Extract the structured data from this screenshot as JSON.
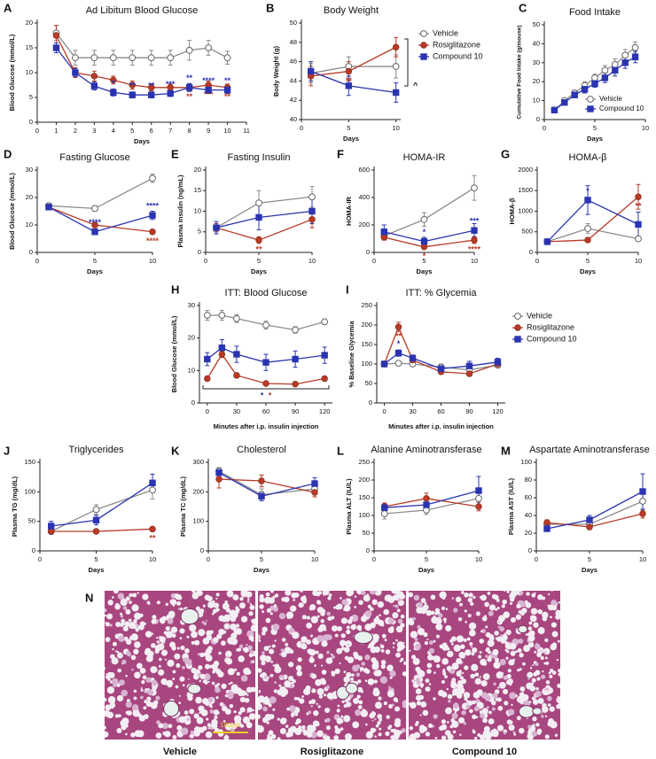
{
  "chart_data": [
    {
      "type": "line",
      "panel": "A",
      "title": "Ad Libitum Blood Glucose",
      "x_label": "Days",
      "y_label": "Blood Glucose (mmol/L)",
      "x": [
        1,
        2,
        3,
        4,
        5,
        6,
        7,
        8,
        9,
        10
      ],
      "xlim": [
        0,
        11
      ],
      "xticks": [
        0,
        1,
        2,
        3,
        4,
        5,
        6,
        7,
        8,
        9,
        10,
        11
      ],
      "ylim": [
        0,
        20
      ],
      "yticks": [
        0,
        5,
        10,
        15,
        20
      ],
      "series": [
        {
          "color": "#8c8c8c",
          "marker": "circle-open",
          "values": [
            18,
            13,
            13,
            13,
            13,
            13,
            13,
            14.5,
            15,
            13
          ],
          "errors": [
            1.5,
            1.5,
            1.5,
            1.5,
            1.5,
            1.5,
            1.5,
            2,
            1.5,
            1.3
          ]
        },
        {
          "color": "#b83a26",
          "marker": "circle",
          "values": [
            17.5,
            10,
            9.3,
            8.5,
            7.5,
            7,
            7,
            7,
            7.5,
            7
          ],
          "errors": [
            2,
            1,
            1,
            0.8,
            0.8,
            0.7,
            0.7,
            0.7,
            0.8,
            0.7
          ],
          "significance": [
            null,
            null,
            null,
            null,
            null,
            "**",
            "**",
            "**",
            "***",
            "**"
          ]
        },
        {
          "color": "#2b34b0",
          "marker": "square",
          "values": [
            15,
            10,
            7.3,
            6,
            5.5,
            5.5,
            5.8,
            7,
            6.5,
            6.5
          ],
          "errors": [
            1,
            0.8,
            0.8,
            0.7,
            0.6,
            0.6,
            0.6,
            0.8,
            0.7,
            0.7
          ],
          "significance": [
            null,
            null,
            null,
            "*",
            "**",
            "**",
            "***",
            "**",
            "****",
            "**"
          ]
        }
      ]
    },
    {
      "type": "line",
      "panel": "B",
      "title": "Body Weight",
      "x_label": "Days",
      "y_label": "Body Weight (g)",
      "x": [
        1,
        5,
        10
      ],
      "xlim": [
        0,
        10.5
      ],
      "xticks": [
        0,
        5,
        10
      ],
      "ylim": [
        40,
        50
      ],
      "yticks": [
        40,
        42,
        44,
        46,
        48,
        50
      ],
      "legend": "right",
      "bracket_label": "^",
      "series": [
        {
          "name": "Vehicle",
          "color": "#8c8c8c",
          "marker": "circle-open",
          "values": [
            44.8,
            45.5,
            45.5
          ],
          "errors": [
            1,
            1,
            1.2
          ]
        },
        {
          "name": "Rosiglitazone",
          "color": "#b83a26",
          "marker": "circle",
          "values": [
            44.5,
            45,
            47.5
          ],
          "errors": [
            1,
            1,
            1
          ],
          "significance": [
            null,
            "**",
            null
          ]
        },
        {
          "name": "Compound 10",
          "color": "#2b34b0",
          "marker": "square",
          "values": [
            45,
            43.5,
            42.8
          ],
          "errors": [
            1,
            1,
            1
          ]
        }
      ]
    },
    {
      "type": "line",
      "panel": "C",
      "title": "Food Intake",
      "x_label": "Days",
      "y_label": "Cumulative Food Intake (g/mouse)",
      "x": [
        1,
        2,
        3,
        4,
        5,
        6,
        7,
        8,
        9
      ],
      "xlim": [
        0,
        10
      ],
      "xticks": [
        0,
        5,
        10
      ],
      "ylim": [
        0,
        50
      ],
      "yticks": [
        0,
        10,
        20,
        30,
        40,
        50
      ],
      "legend": "lower right",
      "series": [
        {
          "name": "Vehicle",
          "color": "#8c8c8c",
          "marker": "circle-open",
          "values": [
            5,
            10,
            14,
            18,
            22,
            26,
            29,
            34,
            38
          ],
          "errors": [
            1,
            1,
            1.5,
            2,
            2,
            2.5,
            3,
            3,
            3
          ]
        },
        {
          "name": "Compound 10",
          "color": "#2b34b0",
          "marker": "square",
          "values": [
            5,
            9,
            13,
            16,
            19,
            22,
            26,
            30,
            33
          ],
          "errors": [
            1,
            1,
            1.5,
            2,
            2,
            2.5,
            3,
            3,
            3
          ]
        }
      ]
    },
    {
      "type": "line",
      "panel": "D",
      "title": "Fasting Glucose",
      "x_label": "Days",
      "y_label": "Blood Glucose (mmol/L)",
      "x": [
        1,
        5,
        10
      ],
      "xlim": [
        0,
        10
      ],
      "xticks": [
        0,
        5,
        10
      ],
      "ylim": [
        0,
        30
      ],
      "yticks": [
        0,
        10,
        20,
        30
      ],
      "series": [
        {
          "color": "#8c8c8c",
          "marker": "circle-open",
          "values": [
            17,
            16,
            27
          ],
          "errors": [
            1,
            1,
            1.5
          ]
        },
        {
          "color": "#b83a26",
          "marker": "circle",
          "values": [
            16.5,
            10,
            7.5
          ],
          "errors": [
            1,
            1,
            0.8
          ],
          "significance": [
            null,
            "**",
            "****"
          ]
        },
        {
          "color": "#2b34b0",
          "marker": "square",
          "values": [
            16.5,
            7.5,
            13.5
          ],
          "errors": [
            1,
            0.8,
            1.5
          ],
          "significance": [
            null,
            "****",
            "****"
          ]
        }
      ]
    },
    {
      "type": "line",
      "panel": "E",
      "title": "Fasting Insulin",
      "x_label": "Days",
      "y_label": "Plasma Insulin (ng/mL)",
      "x": [
        1,
        5,
        10
      ],
      "xlim": [
        0,
        10
      ],
      "xticks": [
        0,
        5,
        10
      ],
      "ylim": [
        0,
        20
      ],
      "yticks": [
        0,
        5,
        10,
        15,
        20
      ],
      "series": [
        {
          "color": "#8c8c8c",
          "marker": "circle-open",
          "values": [
            6,
            12,
            13.5
          ],
          "errors": [
            1,
            3,
            2.5
          ]
        },
        {
          "color": "#b83a26",
          "marker": "circle",
          "values": [
            6,
            3,
            8
          ],
          "errors": [
            1,
            0.8,
            2
          ],
          "significance": [
            null,
            "**",
            null
          ]
        },
        {
          "color": "#2b34b0",
          "marker": "square",
          "values": [
            6,
            8.5,
            10
          ],
          "errors": [
            1.5,
            3,
            3
          ]
        }
      ]
    },
    {
      "type": "line",
      "panel": "F",
      "title": "HOMA-IR",
      "x_label": "Days",
      "y_label": "HOMA-IR",
      "x": [
        1,
        5,
        10
      ],
      "xlim": [
        0,
        10
      ],
      "xticks": [
        0,
        5,
        10
      ],
      "ylim": [
        0,
        600
      ],
      "yticks": [
        0,
        200,
        400,
        600
      ],
      "series": [
        {
          "color": "#8c8c8c",
          "marker": "circle-open",
          "values": [
            120,
            240,
            470
          ],
          "errors": [
            30,
            50,
            90
          ]
        },
        {
          "color": "#b83a26",
          "marker": "circle",
          "values": [
            110,
            40,
            90
          ],
          "errors": [
            20,
            15,
            25
          ],
          "significance": [
            null,
            "*",
            "****"
          ]
        },
        {
          "color": "#2b34b0",
          "marker": "square",
          "values": [
            150,
            80,
            160
          ],
          "errors": [
            50,
            30,
            50
          ],
          "significance": [
            null,
            "*",
            "***"
          ]
        }
      ]
    },
    {
      "type": "line",
      "panel": "G",
      "title": "HOMA-β",
      "x_label": "Days",
      "y_label": "HOMA-β",
      "x": [
        1,
        5,
        10
      ],
      "xlim": [
        0,
        10
      ],
      "xticks": [
        0,
        5,
        10
      ],
      "ylim": [
        0,
        2000
      ],
      "yticks": [
        0,
        500,
        1000,
        1500,
        2000
      ],
      "series": [
        {
          "color": "#8c8c8c",
          "marker": "circle-open",
          "values": [
            260,
            580,
            330
          ],
          "errors": [
            40,
            120,
            60
          ]
        },
        {
          "color": "#b83a26",
          "marker": "circle",
          "values": [
            260,
            300,
            1350
          ],
          "errors": [
            40,
            50,
            300
          ],
          "significance": [
            null,
            null,
            "**"
          ]
        },
        {
          "color": "#2b34b0",
          "marker": "square",
          "values": [
            260,
            1270,
            680
          ],
          "errors": [
            40,
            350,
            300
          ],
          "significance": [
            null,
            "*",
            null
          ]
        }
      ]
    },
    {
      "type": "line",
      "panel": "H",
      "title": "ITT: Blood Glucose",
      "x_label": "Minutes after i.p. insulin injection",
      "y_label": "Blood Glucose (mmol/L)",
      "x": [
        0,
        15,
        30,
        60,
        90,
        120
      ],
      "xlim": [
        -8,
        128
      ],
      "xticks": [
        0,
        30,
        60,
        90,
        120
      ],
      "ylim": [
        0,
        30
      ],
      "yticks": [
        0,
        10,
        20,
        30
      ],
      "bracket_labels": [
        {
          "text": "*",
          "color": "#2b34b0"
        },
        {
          "text": "*",
          "color": "#b83a26"
        }
      ],
      "series": [
        {
          "color": "#8c8c8c",
          "marker": "circle-open",
          "values": [
            27,
            27,
            26,
            24,
            22.5,
            25
          ],
          "errors": [
            1.5,
            1.5,
            1.2,
            1.2,
            1,
            0.8
          ]
        },
        {
          "color": "#b83a26",
          "marker": "circle",
          "values": [
            7.5,
            15,
            8.5,
            6,
            5.8,
            7.5
          ],
          "errors": [
            0.5,
            1,
            0.7,
            0.5,
            0.5,
            0.5
          ]
        },
        {
          "color": "#2b34b0",
          "marker": "square",
          "values": [
            13.5,
            17,
            15,
            12.5,
            13.5,
            14.7
          ],
          "errors": [
            2,
            2.5,
            2.5,
            2.5,
            2.5,
            2.5
          ]
        }
      ]
    },
    {
      "type": "line",
      "panel": "I",
      "title": "ITT: % Glycemia",
      "x_label": "Minutes after i.p. insulin injection",
      "y_label": "% Baseline Glycemia",
      "x": [
        0,
        15,
        30,
        60,
        90,
        120
      ],
      "xlim": [
        -8,
        128
      ],
      "xticks": [
        0,
        30,
        60,
        90,
        120
      ],
      "ylim": [
        0,
        250
      ],
      "yticks": [
        0,
        50,
        100,
        150,
        200,
        250
      ],
      "legend": "right",
      "series": [
        {
          "name": "Vehicle",
          "color": "#8c8c8c",
          "marker": "circle-open",
          "values": [
            100,
            102,
            100,
            92,
            85,
            97
          ],
          "errors": [
            3,
            5,
            5,
            8,
            8,
            5
          ]
        },
        {
          "name": "Rosiglitazone",
          "color": "#b83a26",
          "marker": "circle",
          "values": [
            100,
            195,
            110,
            80,
            75,
            100
          ],
          "errors": [
            3,
            12,
            8,
            6,
            6,
            6
          ],
          "significance": [
            null,
            "**",
            null,
            null,
            null,
            null
          ]
        },
        {
          "name": "Compound 10",
          "color": "#2b34b0",
          "marker": "square",
          "values": [
            100,
            128,
            115,
            88,
            95,
            105
          ],
          "errors": [
            3,
            8,
            8,
            10,
            12,
            10
          ],
          "significance": [
            null,
            "*",
            null,
            null,
            null,
            null
          ]
        }
      ]
    },
    {
      "type": "line",
      "panel": "J",
      "title": "Triglycerides",
      "x_label": "Days",
      "y_label": "Plasma TG (mg/dL)",
      "x": [
        1,
        5,
        10
      ],
      "xlim": [
        0,
        10
      ],
      "xticks": [
        0,
        5,
        10
      ],
      "ylim": [
        0,
        150
      ],
      "yticks": [
        0,
        50,
        100,
        150
      ],
      "series": [
        {
          "color": "#8c8c8c",
          "marker": "circle-open",
          "values": [
            33,
            70,
            103
          ],
          "errors": [
            5,
            8,
            15
          ]
        },
        {
          "color": "#b83a26",
          "marker": "circle",
          "values": [
            33,
            33,
            37
          ],
          "errors": [
            3,
            3,
            3
          ],
          "significance": [
            null,
            null,
            "**"
          ]
        },
        {
          "color": "#2b34b0",
          "marker": "square",
          "values": [
            42,
            52,
            115
          ],
          "errors": [
            8,
            8,
            15
          ]
        }
      ]
    },
    {
      "type": "line",
      "panel": "K",
      "title": "Cholesterol",
      "x_label": "Days",
      "y_label": "Plasma TC (mg/dL)",
      "x": [
        1,
        5,
        10
      ],
      "xlim": [
        0,
        10
      ],
      "xticks": [
        0,
        5,
        10
      ],
      "ylim": [
        0,
        300
      ],
      "yticks": [
        0,
        100,
        200,
        300
      ],
      "series": [
        {
          "color": "#8c8c8c",
          "marker": "circle-open",
          "values": [
            270,
            190,
            210
          ],
          "errors": [
            12,
            20,
            20
          ]
        },
        {
          "color": "#b83a26",
          "marker": "circle",
          "values": [
            243,
            237,
            198
          ],
          "errors": [
            30,
            20,
            15
          ]
        },
        {
          "color": "#2b34b0",
          "marker": "square",
          "values": [
            265,
            185,
            228
          ],
          "errors": [
            15,
            15,
            20
          ]
        }
      ]
    },
    {
      "type": "line",
      "panel": "L",
      "title": "Alanine Aminotransferase",
      "x_label": "Days",
      "y_label": "Plasma ALT (IU/L)",
      "x": [
        1,
        5,
        10
      ],
      "xlim": [
        0,
        10
      ],
      "xticks": [
        0,
        5,
        10
      ],
      "ylim": [
        0,
        250
      ],
      "yticks": [
        0,
        50,
        100,
        150,
        200,
        250
      ],
      "series": [
        {
          "color": "#8c8c8c",
          "marker": "circle-open",
          "values": [
            105,
            115,
            148
          ],
          "errors": [
            15,
            12,
            20
          ]
        },
        {
          "color": "#b83a26",
          "marker": "circle",
          "values": [
            125,
            148,
            125
          ],
          "errors": [
            10,
            15,
            12
          ]
        },
        {
          "color": "#2b34b0",
          "marker": "square",
          "values": [
            122,
            130,
            170
          ],
          "errors": [
            10,
            12,
            40
          ]
        }
      ]
    },
    {
      "type": "line",
      "panel": "M",
      "title": "Aspartate Aminotransferase",
      "x_label": "Days",
      "y_label": "Plasma AST (IU/L)",
      "x": [
        1,
        5,
        10
      ],
      "xlim": [
        0,
        10
      ],
      "xticks": [
        0,
        5,
        10
      ],
      "ylim": [
        0,
        100
      ],
      "yticks": [
        0,
        20,
        40,
        60,
        80,
        100
      ],
      "series": [
        {
          "color": "#8c8c8c",
          "marker": "circle-open",
          "values": [
            30,
            30,
            56
          ],
          "errors": [
            3,
            3,
            10
          ]
        },
        {
          "color": "#b83a26",
          "marker": "circle",
          "values": [
            32,
            27,
            42
          ],
          "errors": [
            3,
            3,
            5
          ]
        },
        {
          "color": "#2b34b0",
          "marker": "square",
          "values": [
            25,
            35,
            67
          ],
          "errors": [
            3,
            5,
            20
          ]
        }
      ]
    }
  ],
  "image_panel": {
    "panel": "N",
    "scale_bar": "100µm",
    "captions": [
      "Vehicle",
      "Rosiglitazone",
      "Compound 10"
    ]
  }
}
